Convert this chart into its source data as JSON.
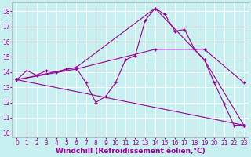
{
  "background_color": "#c8f0f0",
  "grid_color": "#ffffff",
  "line_color": "#990099",
  "xlabel": "Windchill (Refroidissement éolien,°C)",
  "xlabel_fontsize": 6.5,
  "xlim": [
    -0.5,
    23.5
  ],
  "ylim": [
    9.7,
    18.6
  ],
  "xticks": [
    0,
    1,
    2,
    3,
    4,
    5,
    6,
    7,
    8,
    9,
    10,
    11,
    12,
    13,
    14,
    15,
    16,
    17,
    18,
    19,
    20,
    21,
    22,
    23
  ],
  "yticks": [
    10,
    11,
    12,
    13,
    14,
    15,
    16,
    17,
    18
  ],
  "tick_fontsize": 5.5,
  "series": [
    {
      "x": [
        0,
        1,
        2,
        3,
        4,
        5,
        6,
        7,
        8,
        9,
        10,
        11,
        12,
        13,
        14,
        15,
        16,
        17,
        18,
        19,
        20,
        21,
        22,
        23
      ],
      "y": [
        13.5,
        14.1,
        13.8,
        14.1,
        14.0,
        14.2,
        14.3,
        13.3,
        12.0,
        12.4,
        13.3,
        14.8,
        15.1,
        17.4,
        18.2,
        17.8,
        16.7,
        16.8,
        15.5,
        14.8,
        13.3,
        11.9,
        10.5,
        10.5
      ]
    },
    {
      "x": [
        0,
        6,
        14,
        19,
        23
      ],
      "y": [
        13.5,
        14.3,
        18.2,
        14.8,
        10.5
      ]
    },
    {
      "x": [
        0,
        6,
        14,
        19,
        23
      ],
      "y": [
        13.5,
        14.2,
        15.5,
        15.5,
        13.3
      ]
    },
    {
      "x": [
        0,
        23
      ],
      "y": [
        13.5,
        10.5
      ]
    }
  ]
}
